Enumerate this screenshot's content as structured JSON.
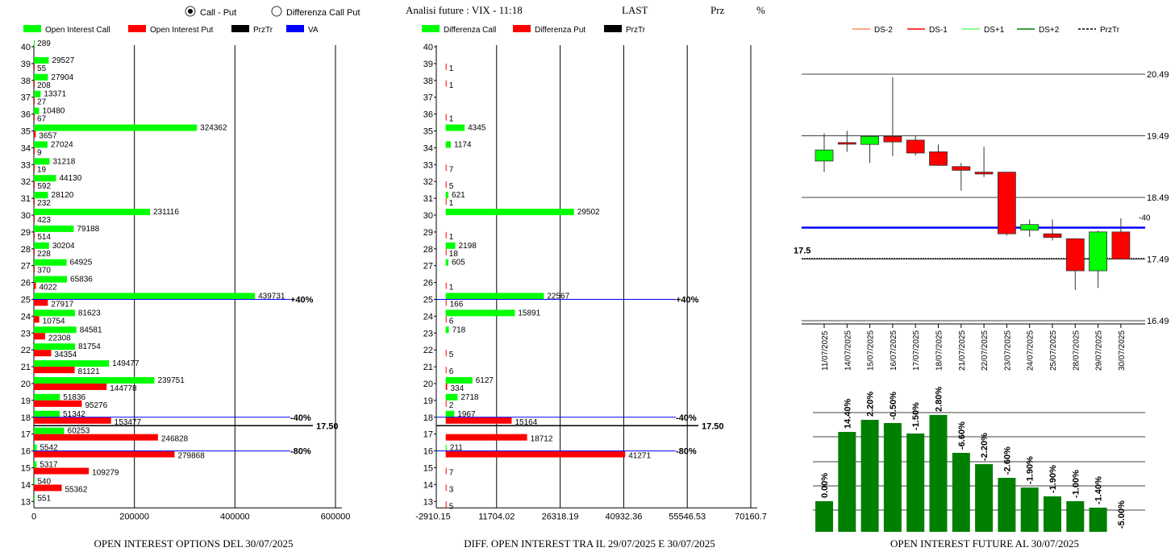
{
  "header": {
    "radio_call_put": "Call - Put",
    "radio_diff": "Differenza Call Put",
    "radio_selected": "call_put",
    "analisi": "Analisi future : VIX - 11:18",
    "last": "LAST",
    "prz": "Prz",
    "pct": "%"
  },
  "colors": {
    "call": "#00ff00",
    "put": "#ff0000",
    "prztr": "#000000",
    "va": "#0000ff",
    "dark_green": "#008000",
    "ds_minus2": "#ff8c5a",
    "ds_minus1": "#ff0000",
    "ds_plus1": "#66ff66",
    "ds_plus2": "#008000"
  },
  "panel1": {
    "legend": [
      "Open Interest Call",
      "Open Interest Put",
      "PrzTr",
      "VA"
    ],
    "title": "OPEN INTEREST OPTIONS DEL 30/07/2025",
    "x_ticks": [
      "0",
      "200000",
      "400000",
      "600000"
    ],
    "x_max": 600000,
    "price_label": "17.50",
    "annotations": [
      {
        "strike": 25,
        "text": "+40%"
      },
      {
        "strike": 18,
        "text": "-40%"
      },
      {
        "strike": 16,
        "text": "-80%"
      }
    ],
    "chart_data": {
      "type": "bar",
      "strikes": [
        40,
        39,
        38,
        37,
        36,
        35,
        34,
        33,
        32,
        31,
        30,
        29,
        28,
        27,
        26,
        25,
        24,
        23,
        22,
        21,
        20,
        19,
        18,
        17,
        16,
        15,
        14,
        13
      ],
      "series": [
        {
          "name": "Open Interest Call",
          "values": [
            289,
            29527,
            27904,
            13371,
            10480,
            324362,
            27024,
            31218,
            44130,
            28120,
            231116,
            79188,
            30204,
            64925,
            65836,
            439731,
            81623,
            84581,
            81754,
            149477,
            239751,
            51836,
            51342,
            60253,
            5542,
            5317,
            540,
            551
          ]
        },
        {
          "name": "Open Interest Put",
          "values": [
            null,
            55,
            208,
            27,
            67,
            3657,
            9,
            19,
            592,
            232,
            423,
            514,
            228,
            370,
            4022,
            27917,
            10754,
            22308,
            34354,
            81121,
            144778,
            95276,
            153477,
            246828,
            279868,
            109279,
            55362,
            null
          ]
        }
      ]
    }
  },
  "panel2": {
    "legend": [
      "Differenza Call",
      "Differenza Put",
      "PrzTr"
    ],
    "title": "DIFF. OPEN INTEREST TRA IL 29/07/2025 E 30/07/2025",
    "x_ticks": [
      "-2910.15",
      "11704.02",
      "26318.19",
      "40932.36",
      "55546.53",
      "70160.7"
    ],
    "x_min": -2910.15,
    "x_max": 70160.7,
    "price_label": "17.50",
    "annotations": [
      {
        "strike": 25,
        "text": "+40%"
      },
      {
        "strike": 18,
        "text": "-40%"
      },
      {
        "strike": 16,
        "text": "-80%"
      }
    ],
    "chart_data": {
      "type": "bar",
      "strikes": [
        40,
        39,
        38,
        37,
        36,
        35,
        34,
        33,
        32,
        31,
        30,
        29,
        28,
        27,
        26,
        25,
        24,
        23,
        22,
        21,
        20,
        19,
        18,
        17,
        16,
        15,
        14,
        13
      ],
      "series": [
        {
          "name": "Differenza Call",
          "values": [
            null,
            null,
            null,
            null,
            null,
            4345,
            1174,
            null,
            null,
            621,
            29502,
            null,
            2198,
            605,
            null,
            22567,
            15891,
            718,
            null,
            null,
            6127,
            2718,
            1967,
            null,
            211,
            null,
            null,
            null
          ]
        },
        {
          "name": "Differenza Put",
          "values": [
            null,
            1,
            1,
            null,
            1,
            null,
            null,
            7,
            5,
            1,
            null,
            1,
            18,
            null,
            1,
            166,
            6,
            null,
            5,
            6,
            334,
            2,
            15164,
            18712,
            41271,
            7,
            3,
            5
          ]
        }
      ]
    }
  },
  "panel3": {
    "legend": [
      "DS-2",
      "DS-1",
      "DS+1",
      "DS+2",
      "PrzTr"
    ],
    "y_ticks": [
      "20.49",
      "19.49",
      "18.49",
      "17.49",
      "16.49"
    ],
    "price_label": "17.5",
    "va_label": "-40",
    "chart_data": {
      "type": "candlestick",
      "dates": [
        "11/07/2025",
        "14/07/2025",
        "15/07/2025",
        "16/07/2025",
        "17/07/2025",
        "18/07/2025",
        "21/07/2025",
        "22/07/2025",
        "23/07/2025",
        "24/07/2025",
        "25/07/2025",
        "28/07/2025",
        "29/07/2025",
        "30/07/2025"
      ],
      "ylim": [
        16.49,
        20.49
      ],
      "open": [
        19.08,
        19.38,
        19.35,
        19.48,
        19.42,
        19.23,
        18.99,
        18.9,
        18.9,
        17.96,
        17.9,
        17.82,
        17.3,
        17.93
      ],
      "close": [
        19.26,
        19.36,
        19.48,
        19.39,
        19.21,
        19.01,
        18.93,
        18.87,
        17.9,
        18.05,
        17.84,
        17.3,
        17.93,
        17.49
      ],
      "high": [
        19.53,
        19.57,
        19.5,
        20.44,
        19.49,
        19.35,
        19.05,
        19.31,
        18.9,
        18.13,
        18.13,
        17.82,
        17.95,
        18.15
      ],
      "low": [
        18.9,
        19.23,
        19.05,
        19.16,
        19.17,
        19.0,
        18.6,
        18.82,
        17.87,
        17.85,
        17.79,
        16.99,
        17.02,
        17.49
      ],
      "hline_va": 18.0,
      "hline_prztr": 17.5
    }
  },
  "panel4": {
    "title": "OPEN INTEREST FUTURE AL 30/07/2025",
    "chart_data": {
      "type": "bar",
      "labels": [
        "0.00%",
        "14.40%",
        "2.20%",
        "-0.50%",
        "-1.50%",
        "2.80%",
        "-6.60%",
        "-2.20%",
        "-2.60%",
        "-1.90%",
        "-1.90%",
        "-1.00%",
        "-1.40%",
        "-5.00%"
      ],
      "values": [
        38,
        124,
        139,
        135,
        122,
        145,
        98,
        84,
        67,
        55,
        44,
        38,
        30,
        0
      ]
    }
  }
}
